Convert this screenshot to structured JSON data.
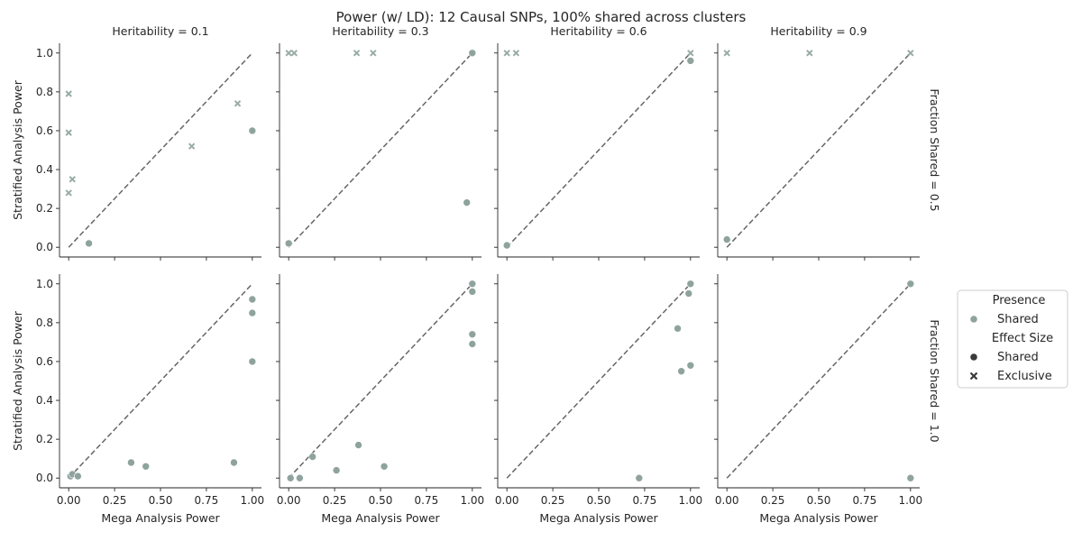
{
  "figure": {
    "title": "Power (w/ LD): 12 Causal SNPs, 100% shared across clusters"
  },
  "legend": {
    "presence_title": "Presence",
    "presence_items": [
      {
        "label": "Shared",
        "color": "#8fa39e"
      }
    ],
    "effect_title": "Effect Size",
    "effect_items": [
      {
        "label": "Shared",
        "marker": "circle",
        "color": "#3a3a3a"
      },
      {
        "label": "Exclusive",
        "marker": "x",
        "color": "#3a3a3a"
      }
    ]
  },
  "style": {
    "point_color": "#8fa39e",
    "diagonal_color": "#666666",
    "axis_color": "#262626"
  },
  "chart_data": {
    "type": "scatter",
    "xlabel": "Mega Analysis Power",
    "ylabel": "Stratified Analysis Power",
    "xlim": [
      -0.05,
      1.05
    ],
    "ylim": [
      -0.05,
      1.05
    ],
    "xticks": [
      0.0,
      0.25,
      0.5,
      0.75,
      1.0
    ],
    "xtick_labels": [
      "0.00",
      "0.25",
      "0.50",
      "0.75",
      "1.00"
    ],
    "yticks": [
      0.0,
      0.2,
      0.4,
      0.6,
      0.8,
      1.0
    ],
    "ytick_labels": [
      "0.0",
      "0.2",
      "0.4",
      "0.6",
      "0.8",
      "1.0"
    ],
    "col_labels": [
      "Heritability = 0.1",
      "Heritability = 0.3",
      "Heritability = 0.6",
      "Heritability = 0.9"
    ],
    "row_labels": [
      "Fraction Shared = 0.5",
      "Fraction Shared = 1.0"
    ],
    "reference_line": [
      [
        0,
        0
      ],
      [
        1,
        1
      ]
    ],
    "panels": [
      {
        "row": 0,
        "col": 0,
        "points": [
          {
            "x": 0.0,
            "y": 0.79,
            "marker": "x"
          },
          {
            "x": 0.0,
            "y": 0.59,
            "marker": "x"
          },
          {
            "x": 0.02,
            "y": 0.35,
            "marker": "x"
          },
          {
            "x": 0.0,
            "y": 0.28,
            "marker": "x"
          },
          {
            "x": 0.67,
            "y": 0.52,
            "marker": "x"
          },
          {
            "x": 0.92,
            "y": 0.74,
            "marker": "x"
          },
          {
            "x": 0.11,
            "y": 0.02,
            "marker": "circle"
          },
          {
            "x": 1.0,
            "y": 0.6,
            "marker": "circle"
          }
        ]
      },
      {
        "row": 0,
        "col": 1,
        "points": [
          {
            "x": 0.0,
            "y": 1.0,
            "marker": "x"
          },
          {
            "x": 0.03,
            "y": 1.0,
            "marker": "x"
          },
          {
            "x": 0.37,
            "y": 1.0,
            "marker": "x"
          },
          {
            "x": 0.46,
            "y": 1.0,
            "marker": "x"
          },
          {
            "x": 1.0,
            "y": 1.0,
            "marker": "circle"
          },
          {
            "x": 0.97,
            "y": 0.23,
            "marker": "circle"
          },
          {
            "x": 0.0,
            "y": 0.02,
            "marker": "circle"
          }
        ]
      },
      {
        "row": 0,
        "col": 2,
        "points": [
          {
            "x": 0.0,
            "y": 1.0,
            "marker": "x"
          },
          {
            "x": 0.05,
            "y": 1.0,
            "marker": "x"
          },
          {
            "x": 1.0,
            "y": 1.0,
            "marker": "x"
          },
          {
            "x": 1.0,
            "y": 0.96,
            "marker": "circle"
          },
          {
            "x": 0.0,
            "y": 0.01,
            "marker": "circle"
          }
        ]
      },
      {
        "row": 0,
        "col": 3,
        "points": [
          {
            "x": 0.0,
            "y": 1.0,
            "marker": "x"
          },
          {
            "x": 0.45,
            "y": 1.0,
            "marker": "x"
          },
          {
            "x": 1.0,
            "y": 1.0,
            "marker": "x"
          },
          {
            "x": 0.0,
            "y": 0.04,
            "marker": "circle"
          }
        ]
      },
      {
        "row": 1,
        "col": 0,
        "points": [
          {
            "x": 1.0,
            "y": 0.92,
            "marker": "circle"
          },
          {
            "x": 1.0,
            "y": 0.85,
            "marker": "circle"
          },
          {
            "x": 1.0,
            "y": 0.6,
            "marker": "circle"
          },
          {
            "x": 0.34,
            "y": 0.08,
            "marker": "circle"
          },
          {
            "x": 0.42,
            "y": 0.06,
            "marker": "circle"
          },
          {
            "x": 0.9,
            "y": 0.08,
            "marker": "circle"
          },
          {
            "x": 0.01,
            "y": 0.01,
            "marker": "circle"
          },
          {
            "x": 0.02,
            "y": 0.02,
            "marker": "circle"
          },
          {
            "x": 0.05,
            "y": 0.01,
            "marker": "circle"
          }
        ]
      },
      {
        "row": 1,
        "col": 1,
        "points": [
          {
            "x": 1.0,
            "y": 1.0,
            "marker": "circle"
          },
          {
            "x": 1.0,
            "y": 0.96,
            "marker": "circle"
          },
          {
            "x": 1.0,
            "y": 0.74,
            "marker": "circle"
          },
          {
            "x": 1.0,
            "y": 0.69,
            "marker": "circle"
          },
          {
            "x": 0.38,
            "y": 0.17,
            "marker": "circle"
          },
          {
            "x": 0.13,
            "y": 0.11,
            "marker": "circle"
          },
          {
            "x": 0.52,
            "y": 0.06,
            "marker": "circle"
          },
          {
            "x": 0.26,
            "y": 0.04,
            "marker": "circle"
          },
          {
            "x": 0.01,
            "y": 0.0,
            "marker": "circle"
          },
          {
            "x": 0.06,
            "y": 0.0,
            "marker": "circle"
          }
        ]
      },
      {
        "row": 1,
        "col": 2,
        "points": [
          {
            "x": 1.0,
            "y": 1.0,
            "marker": "circle"
          },
          {
            "x": 0.99,
            "y": 0.95,
            "marker": "circle"
          },
          {
            "x": 0.93,
            "y": 0.77,
            "marker": "circle"
          },
          {
            "x": 1.0,
            "y": 0.58,
            "marker": "circle"
          },
          {
            "x": 0.95,
            "y": 0.55,
            "marker": "circle"
          },
          {
            "x": 0.72,
            "y": 0.0,
            "marker": "circle"
          }
        ]
      },
      {
        "row": 1,
        "col": 3,
        "points": [
          {
            "x": 1.0,
            "y": 1.0,
            "marker": "circle"
          },
          {
            "x": 1.0,
            "y": 0.0,
            "marker": "circle"
          }
        ]
      }
    ]
  }
}
